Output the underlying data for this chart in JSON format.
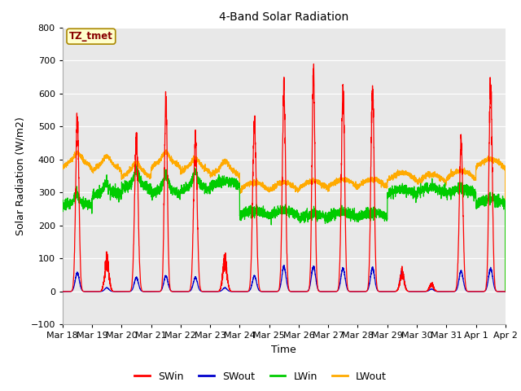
{
  "title": "4-Band Solar Radiation",
  "xlabel": "Time",
  "ylabel": "Solar Radiation (W/m2)",
  "annotation": "TZ_tmet",
  "ylim": [
    -100,
    800
  ],
  "yticks": [
    -100,
    0,
    100,
    200,
    300,
    400,
    500,
    600,
    700,
    800
  ],
  "xtick_labels": [
    "Mar 18",
    "Mar 19",
    "Mar 20",
    "Mar 21",
    "Mar 22",
    "Mar 23",
    "Mar 24",
    "Mar 25",
    "Mar 26",
    "Mar 27",
    "Mar 28",
    "Mar 29",
    "Mar 30",
    "Mar 31",
    "Apr 1",
    "Apr 2"
  ],
  "legend_labels": [
    "SWin",
    "SWout",
    "LWin",
    "LWout"
  ],
  "legend_colors": [
    "#ff0000",
    "#0000cc",
    "#00cc00",
    "#ffaa00"
  ],
  "line_colors": {
    "SWin": "#ff0000",
    "SWout": "#0000cc",
    "LWin": "#00cc00",
    "LWout": "#ffaa00"
  },
  "plot_bg_color": "#e8e8e8",
  "fig_bg_color": "#ffffff",
  "grid_color": "#ffffff",
  "annotation_text_color": "#880000",
  "annotation_bg_color": "#ffffcc",
  "annotation_edge_color": "#aa8800",
  "n_days": 15,
  "pts_per_day": 288
}
